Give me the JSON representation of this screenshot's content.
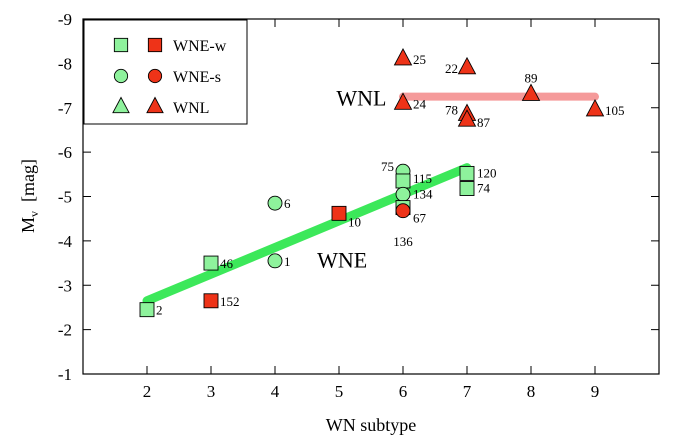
{
  "chart_data": {
    "type": "scatter",
    "xlabel": "WN subtype",
    "ylabel_main": "M",
    "ylabel_sub": "v",
    "ylabel_rest": "  [mag]",
    "xlim": [
      1,
      10
    ],
    "ylim": [
      -1,
      -9
    ],
    "xticks": [
      2,
      3,
      4,
      5,
      6,
      7,
      8,
      9
    ],
    "yticks": [
      -1,
      -2,
      -3,
      -4,
      -5,
      -6,
      -7,
      -8,
      -9
    ],
    "grid": false,
    "legend_position": "top-left",
    "legend": [
      {
        "label": "WNE-w",
        "marker": "square"
      },
      {
        "label": "WNE-s",
        "marker": "circle"
      },
      {
        "label": "WNL",
        "marker": "triangle"
      }
    ],
    "colors": {
      "green_fill": "#8ef29c",
      "red_fill": "#ee3318",
      "wne_line": "#3ce85a",
      "wnl_line": "#f59a9a"
    },
    "region_labels": [
      {
        "text": "WNL",
        "x": 5.35,
        "y": -7.05
      },
      {
        "text": "WNE",
        "x": 5.05,
        "y": -3.4
      }
    ],
    "fit_lines": [
      {
        "name": "WNE",
        "x": [
          2,
          7
        ],
        "y": [
          -2.65,
          -5.65
        ]
      },
      {
        "name": "WNL",
        "x": [
          6,
          9
        ],
        "y": [
          -7.25,
          -7.25
        ]
      }
    ],
    "points": [
      {
        "x": 2,
        "y": -2.45,
        "marker": "square",
        "color": "green",
        "label": "2"
      },
      {
        "x": 3,
        "y": -3.5,
        "marker": "square",
        "color": "green",
        "label": "46"
      },
      {
        "x": 3,
        "y": -2.65,
        "marker": "square",
        "color": "red",
        "label": "152"
      },
      {
        "x": 4,
        "y": -4.85,
        "marker": "circle",
        "color": "green",
        "label": "6"
      },
      {
        "x": 4,
        "y": -3.55,
        "marker": "circle",
        "color": "green",
        "label": "1"
      },
      {
        "x": 5,
        "y": -4.62,
        "marker": "square",
        "color": "red",
        "label": "10"
      },
      {
        "x": 6,
        "y": -5.57,
        "marker": "circle",
        "color": "green",
        "label": "75"
      },
      {
        "x": 6,
        "y": -5.35,
        "marker": "square",
        "color": "green",
        "label": "115"
      },
      {
        "x": 6,
        "y": -5.05,
        "marker": "circle",
        "color": "green",
        "label": "134"
      },
      {
        "x": 6,
        "y": -4.75,
        "marker": "square",
        "color": "green",
        "label": ""
      },
      {
        "x": 6,
        "y": -4.68,
        "marker": "circle",
        "color": "red",
        "label": "67"
      },
      {
        "x": 6,
        "y": -4.65,
        "marker": "none",
        "color": "none",
        "label": "136"
      },
      {
        "x": 7,
        "y": -5.52,
        "marker": "square",
        "color": "green",
        "label": "120"
      },
      {
        "x": 7,
        "y": -5.18,
        "marker": "square",
        "color": "green",
        "label": "74"
      },
      {
        "x": 6,
        "y": -8.1,
        "marker": "triangle",
        "color": "red",
        "label": "25"
      },
      {
        "x": 6,
        "y": -7.1,
        "marker": "triangle",
        "color": "red",
        "label": "24"
      },
      {
        "x": 7,
        "y": -7.9,
        "marker": "triangle",
        "color": "red",
        "label": "22"
      },
      {
        "x": 7,
        "y": -6.85,
        "marker": "triangle",
        "color": "red",
        "label": "78"
      },
      {
        "x": 7,
        "y": -6.72,
        "marker": "triangle",
        "color": "red",
        "label": "87"
      },
      {
        "x": 8,
        "y": -7.3,
        "marker": "triangle",
        "color": "red",
        "label": "89"
      },
      {
        "x": 9,
        "y": -6.95,
        "marker": "triangle",
        "color": "red",
        "label": "105"
      }
    ]
  }
}
